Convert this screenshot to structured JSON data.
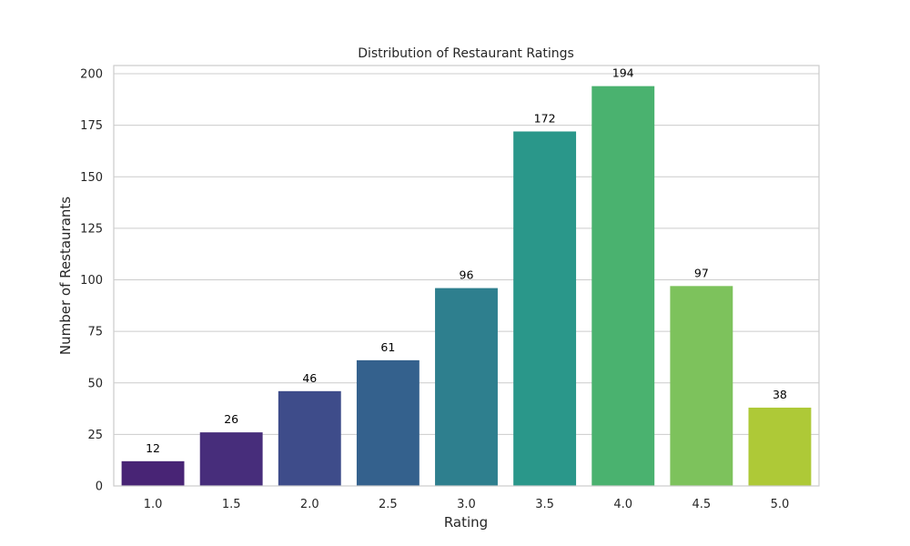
{
  "chart_data": {
    "type": "bar",
    "title": "Distribution of Restaurant Ratings",
    "xlabel": "Rating",
    "ylabel": "Number of Restaurants",
    "categories": [
      "1.0",
      "1.5",
      "2.0",
      "2.5",
      "3.0",
      "3.5",
      "4.0",
      "4.5",
      "5.0"
    ],
    "values": [
      12,
      26,
      46,
      61,
      96,
      172,
      194,
      97,
      38
    ],
    "colors": [
      "#482475",
      "#472d7b",
      "#3e4c8a",
      "#34618d",
      "#2e7f8e",
      "#2a978a",
      "#4ab26f",
      "#7dc25c",
      "#aec937"
    ],
    "ylim": [
      0,
      204
    ],
    "yticks": [
      0,
      25,
      50,
      75,
      100,
      125,
      150,
      175,
      200
    ],
    "grid": true,
    "legend": "none"
  }
}
